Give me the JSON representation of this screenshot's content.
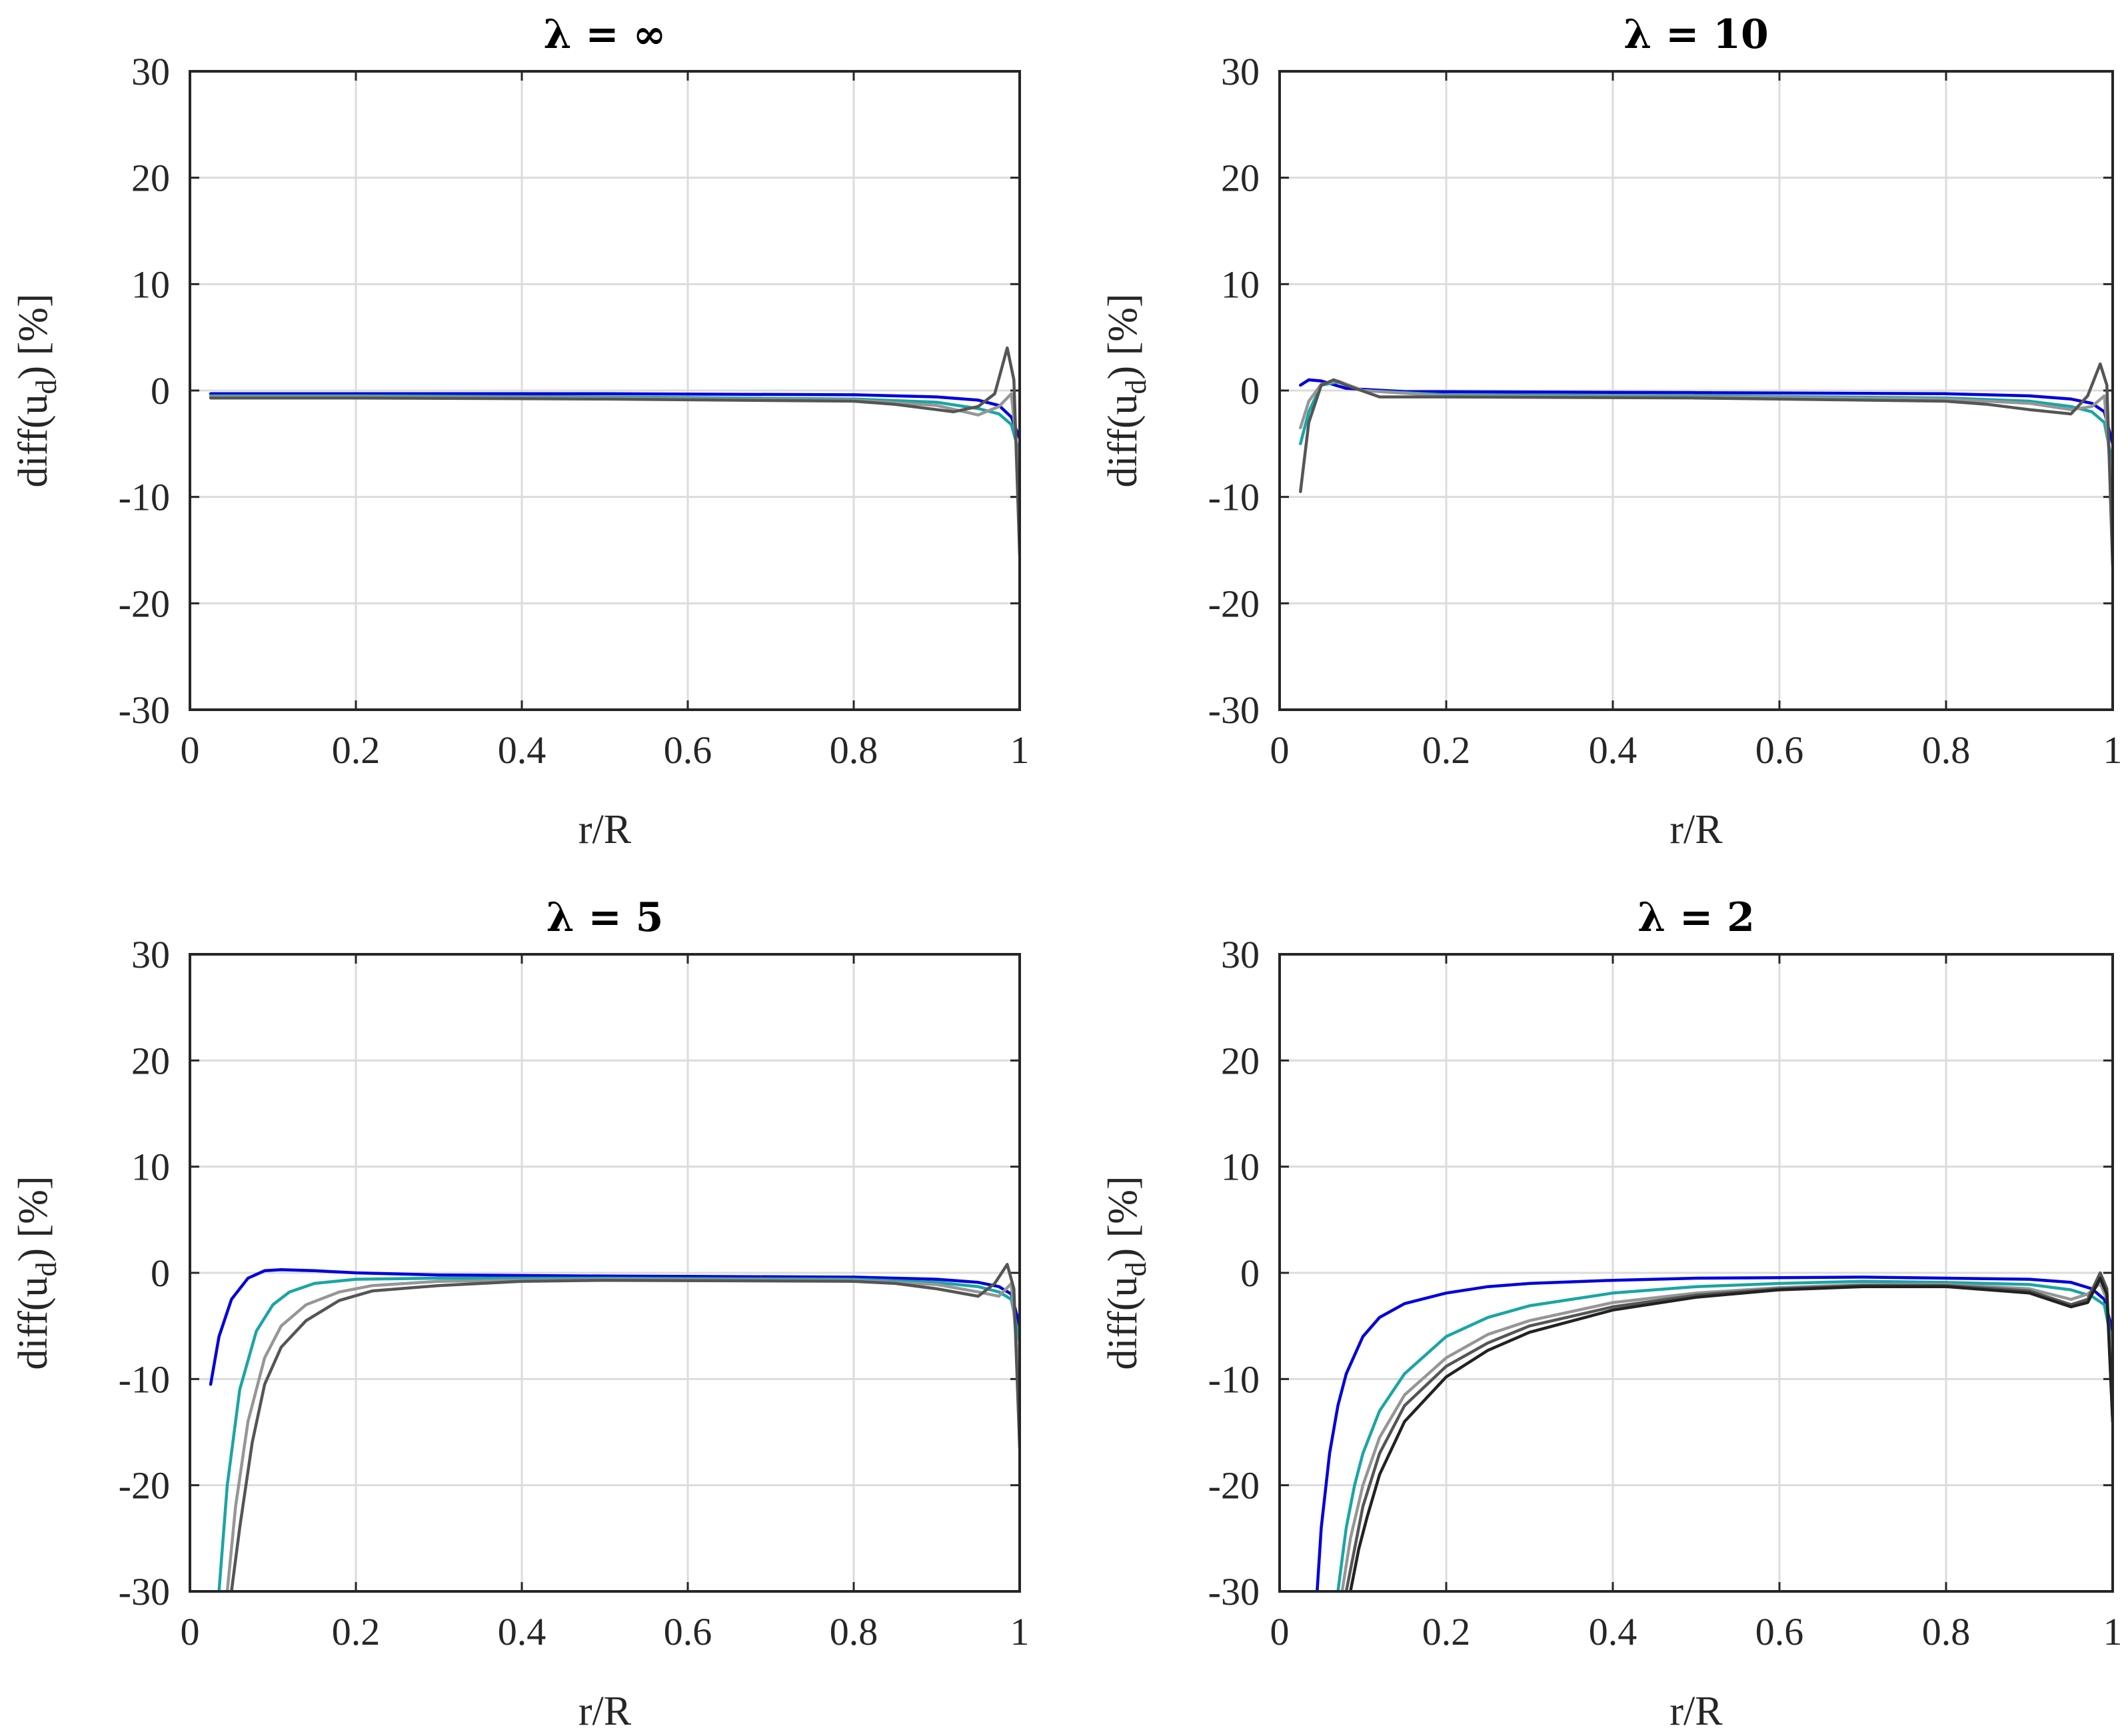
{
  "chart_data": [
    {
      "type": "line",
      "title": "λ = ∞",
      "xlabel": "r/R",
      "ylabel": "diff(u",
      "ylabel_sub": "d",
      "ylabel_suffix": ") [%]",
      "xlim": [
        0,
        1
      ],
      "ylim": [
        -30,
        30
      ],
      "xticks": [
        "0",
        "0.2",
        "0.4",
        "0.6",
        "0.8",
        "1"
      ],
      "yticks": [
        "30",
        "20",
        "10",
        "0",
        "-10",
        "-20",
        "-30"
      ],
      "grid": true,
      "series": [
        {
          "name": "series-1",
          "color": "#0000dd",
          "x": [
            0.025,
            0.2,
            0.5,
            0.8,
            0.9,
            0.95,
            0.975,
            0.99,
            1.0
          ],
          "y": [
            -0.3,
            -0.3,
            -0.3,
            -0.4,
            -0.6,
            -0.9,
            -1.4,
            -2.5,
            -4.5
          ]
        },
        {
          "name": "series-2",
          "color": "#1aa5a5",
          "x": [
            0.025,
            0.2,
            0.5,
            0.8,
            0.9,
            0.95,
            0.975,
            0.99,
            1.0
          ],
          "y": [
            -0.5,
            -0.5,
            -0.6,
            -0.8,
            -1.1,
            -1.7,
            -2.2,
            -3.2,
            -6.0
          ]
        },
        {
          "name": "series-3",
          "color": "#969696",
          "x": [
            0.025,
            0.2,
            0.5,
            0.8,
            0.9,
            0.95,
            0.975,
            0.99,
            1.0
          ],
          "y": [
            -0.6,
            -0.6,
            -0.7,
            -0.9,
            -1.4,
            -2.3,
            -1.5,
            -0.3,
            -8.0
          ]
        },
        {
          "name": "series-4",
          "color": "#555555",
          "x": [
            0.025,
            0.2,
            0.5,
            0.8,
            0.85,
            0.9,
            0.92,
            0.95,
            0.97,
            0.985,
            0.993,
            1.0
          ],
          "y": [
            -0.7,
            -0.7,
            -0.8,
            -1.0,
            -1.3,
            -1.8,
            -2.0,
            -1.5,
            -0.3,
            4.0,
            1.0,
            -15.5
          ]
        }
      ]
    },
    {
      "type": "line",
      "title": "λ = 10",
      "xlabel": "r/R",
      "ylabel": "diff(u",
      "ylabel_sub": "d",
      "ylabel_suffix": ") [%]",
      "xlim": [
        0,
        1
      ],
      "ylim": [
        -30,
        30
      ],
      "xticks": [
        "0",
        "0.2",
        "0.4",
        "0.6",
        "0.8",
        "1"
      ],
      "yticks": [
        "30",
        "20",
        "10",
        "0",
        "-10",
        "-20",
        "-30"
      ],
      "grid": true,
      "series": [
        {
          "name": "series-1",
          "color": "#0000dd",
          "x": [
            0.025,
            0.035,
            0.05,
            0.08,
            0.15,
            0.5,
            0.8,
            0.9,
            0.95,
            0.975,
            0.99,
            1.0
          ],
          "y": [
            0.5,
            1.0,
            0.9,
            0.2,
            -0.1,
            -0.2,
            -0.3,
            -0.5,
            -0.8,
            -1.2,
            -2.0,
            -5.0
          ]
        },
        {
          "name": "series-2",
          "color": "#1aa5a5",
          "x": [
            0.025,
            0.035,
            0.05,
            0.07,
            0.1,
            0.2,
            0.5,
            0.8,
            0.9,
            0.95,
            0.975,
            0.99,
            1.0
          ],
          "y": [
            -5.0,
            -2.0,
            0.5,
            0.8,
            0.0,
            -0.4,
            -0.5,
            -0.7,
            -1.0,
            -1.5,
            -2.0,
            -3.0,
            -7.0
          ]
        },
        {
          "name": "series-3",
          "color": "#969696",
          "x": [
            0.025,
            0.035,
            0.05,
            0.07,
            0.1,
            0.2,
            0.5,
            0.8,
            0.9,
            0.95,
            0.975,
            0.99,
            1.0
          ],
          "y": [
            -3.5,
            -1.0,
            0.6,
            0.9,
            0.0,
            -0.5,
            -0.6,
            -0.8,
            -1.2,
            -1.8,
            -1.5,
            -0.5,
            -10.0
          ]
        },
        {
          "name": "series-4",
          "color": "#555555",
          "x": [
            0.025,
            0.035,
            0.05,
            0.065,
            0.08,
            0.12,
            0.2,
            0.5,
            0.8,
            0.85,
            0.9,
            0.95,
            0.97,
            0.985,
            0.993,
            1.0
          ],
          "y": [
            -9.5,
            -3.0,
            0.5,
            1.0,
            0.5,
            -0.6,
            -0.6,
            -0.7,
            -1.0,
            -1.3,
            -1.8,
            -2.2,
            -0.5,
            2.5,
            0.5,
            -16.5
          ]
        }
      ]
    },
    {
      "type": "line",
      "title": "λ = 5",
      "xlabel": "r/R",
      "ylabel": "diff(u",
      "ylabel_sub": "d",
      "ylabel_suffix": ") [%]",
      "xlim": [
        0,
        1
      ],
      "ylim": [
        -30,
        30
      ],
      "xticks": [
        "0",
        "0.2",
        "0.4",
        "0.6",
        "0.8",
        "1"
      ],
      "yticks": [
        "30",
        "20",
        "10",
        "0",
        "-10",
        "-20",
        "-30"
      ],
      "grid": true,
      "series": [
        {
          "name": "series-1",
          "color": "#0000dd",
          "x": [
            0.025,
            0.035,
            0.05,
            0.07,
            0.09,
            0.11,
            0.15,
            0.2,
            0.3,
            0.5,
            0.8,
            0.9,
            0.95,
            0.975,
            0.99,
            1.0
          ],
          "y": [
            -10.5,
            -6.0,
            -2.5,
            -0.5,
            0.2,
            0.3,
            0.2,
            0.0,
            -0.2,
            -0.3,
            -0.4,
            -0.6,
            -0.9,
            -1.3,
            -2.0,
            -5.0
          ]
        },
        {
          "name": "series-2",
          "color": "#1aa5a5",
          "x": [
            0.035,
            0.045,
            0.06,
            0.08,
            0.1,
            0.12,
            0.15,
            0.2,
            0.3,
            0.5,
            0.8,
            0.9,
            0.95,
            0.975,
            0.99,
            1.0
          ],
          "y": [
            -30.0,
            -20.0,
            -11.0,
            -5.5,
            -3.0,
            -1.8,
            -1.0,
            -0.6,
            -0.5,
            -0.5,
            -0.6,
            -0.9,
            -1.3,
            -1.8,
            -2.5,
            -6.5
          ]
        },
        {
          "name": "series-3",
          "color": "#969696",
          "x": [
            0.045,
            0.055,
            0.07,
            0.09,
            0.11,
            0.14,
            0.18,
            0.22,
            0.3,
            0.5,
            0.8,
            0.9,
            0.95,
            0.975,
            0.99,
            1.0
          ],
          "y": [
            -30.0,
            -22.0,
            -14.0,
            -8.0,
            -5.0,
            -3.0,
            -1.8,
            -1.2,
            -0.8,
            -0.6,
            -0.7,
            -1.1,
            -1.8,
            -2.2,
            -1.0,
            -10.0
          ]
        },
        {
          "name": "series-4",
          "color": "#555555",
          "x": [
            0.05,
            0.06,
            0.075,
            0.09,
            0.11,
            0.14,
            0.18,
            0.22,
            0.3,
            0.4,
            0.5,
            0.8,
            0.85,
            0.9,
            0.95,
            0.97,
            0.985,
            0.993,
            1.0
          ],
          "y": [
            -30.0,
            -24.0,
            -16.0,
            -10.5,
            -7.0,
            -4.5,
            -2.6,
            -1.7,
            -1.2,
            -0.8,
            -0.7,
            -0.8,
            -1.0,
            -1.5,
            -2.2,
            -1.0,
            0.8,
            -1.5,
            -16.5
          ]
        }
      ]
    },
    {
      "type": "line",
      "title": "λ = 2",
      "xlabel": "r/R",
      "ylabel": "diff(u",
      "ylabel_sub": "d",
      "ylabel_suffix": ") [%]",
      "xlim": [
        0,
        1
      ],
      "ylim": [
        -30,
        30
      ],
      "xticks": [
        "0",
        "0.2",
        "0.4",
        "0.6",
        "0.8",
        "1"
      ],
      "yticks": [
        "30",
        "20",
        "10",
        "0",
        "-10",
        "-20",
        "-30"
      ],
      "grid": true,
      "series": [
        {
          "name": "series-1",
          "color": "#0000dd",
          "x": [
            0.045,
            0.05,
            0.06,
            0.07,
            0.08,
            0.1,
            0.12,
            0.15,
            0.2,
            0.25,
            0.3,
            0.4,
            0.5,
            0.7,
            0.9,
            0.95,
            0.975,
            0.99,
            1.0
          ],
          "y": [
            -30.0,
            -24.0,
            -17.0,
            -12.5,
            -9.5,
            -6.0,
            -4.2,
            -2.9,
            -1.9,
            -1.3,
            -1.0,
            -0.7,
            -0.5,
            -0.4,
            -0.6,
            -0.9,
            -1.5,
            -2.5,
            -5.5
          ]
        },
        {
          "name": "series-2",
          "color": "#1aa5a5",
          "x": [
            0.07,
            0.08,
            0.09,
            0.1,
            0.12,
            0.15,
            0.2,
            0.25,
            0.3,
            0.4,
            0.5,
            0.6,
            0.7,
            0.8,
            0.9,
            0.95,
            0.975,
            0.99,
            1.0
          ],
          "y": [
            -30.0,
            -24.0,
            -20.0,
            -17.0,
            -13.0,
            -9.5,
            -6.0,
            -4.2,
            -3.1,
            -1.9,
            -1.3,
            -1.0,
            -0.8,
            -0.9,
            -1.1,
            -1.6,
            -2.2,
            -3.0,
            -7.0
          ]
        },
        {
          "name": "series-3",
          "color": "#969696",
          "x": [
            0.075,
            0.085,
            0.1,
            0.12,
            0.15,
            0.2,
            0.25,
            0.3,
            0.4,
            0.5,
            0.6,
            0.7,
            0.8,
            0.9,
            0.95,
            0.97,
            0.985,
            0.993,
            1.0
          ],
          "y": [
            -30.0,
            -25.0,
            -20.0,
            -15.5,
            -11.5,
            -8.0,
            -5.8,
            -4.5,
            -2.8,
            -1.9,
            -1.4,
            -1.1,
            -1.1,
            -1.5,
            -2.5,
            -2.0,
            -1.0,
            -2.5,
            -10.0
          ]
        },
        {
          "name": "series-4",
          "color": "#555555",
          "x": [
            0.08,
            0.09,
            0.1,
            0.12,
            0.15,
            0.2,
            0.25,
            0.3,
            0.4,
            0.5,
            0.6,
            0.7,
            0.8,
            0.9,
            0.95,
            0.97,
            0.985,
            0.993,
            1.0
          ],
          "y": [
            -30.0,
            -26.0,
            -22.0,
            -17.0,
            -12.5,
            -8.8,
            -6.6,
            -5.0,
            -3.2,
            -2.1,
            -1.5,
            -1.2,
            -1.2,
            -1.7,
            -3.0,
            -2.5,
            0.0,
            -1.5,
            -14.0
          ]
        },
        {
          "name": "series-5",
          "color": "#222222",
          "x": [
            0.085,
            0.095,
            0.105,
            0.12,
            0.15,
            0.2,
            0.25,
            0.3,
            0.4,
            0.5,
            0.6,
            0.7,
            0.8,
            0.9,
            0.95,
            0.97,
            0.985,
            0.993,
            1.0
          ],
          "y": [
            -30.0,
            -26.0,
            -23.0,
            -19.0,
            -14.0,
            -9.8,
            -7.3,
            -5.6,
            -3.5,
            -2.3,
            -1.6,
            -1.3,
            -1.3,
            -1.9,
            -3.2,
            -2.8,
            -0.5,
            -2.0,
            -14.0
          ]
        }
      ]
    }
  ]
}
